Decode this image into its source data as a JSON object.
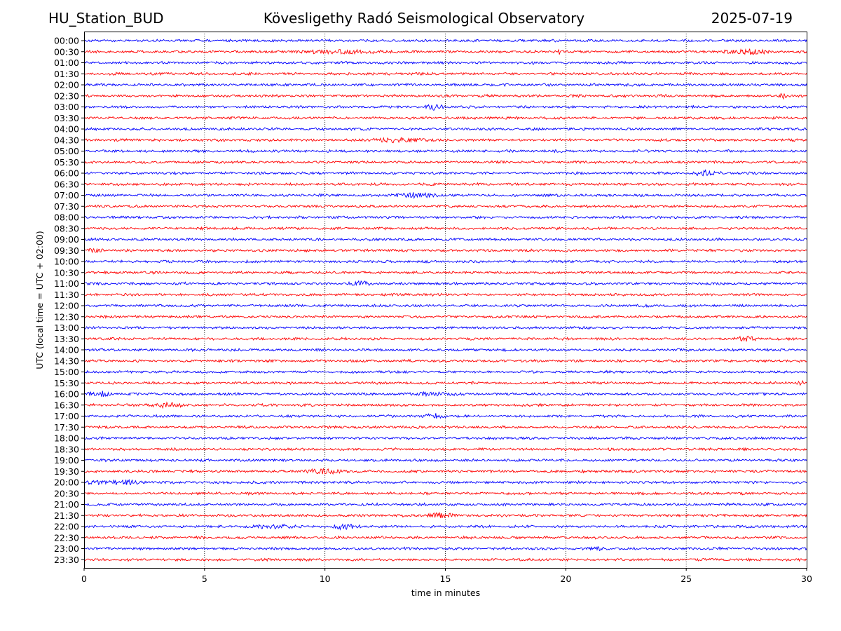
{
  "header": {
    "station": "HU_Station_BUD",
    "title": "Kövesligethy Radó Seismological Observatory",
    "date": "2025-07-19"
  },
  "chart_data": {
    "type": "line",
    "chart_kind": "helicorder",
    "xlabel": "time in minutes",
    "ylabel": "UTC (local time = UTC + 02:00)",
    "xlim": [
      0,
      30
    ],
    "x_ticks": [
      0,
      5,
      10,
      15,
      20,
      25,
      30
    ],
    "x_tick_labels": [
      "0",
      "5",
      "10",
      "15",
      "20",
      "25",
      "30"
    ],
    "grid": "vertical dotted at each x tick",
    "trace_colors": [
      "#0000ff",
      "#ff0000"
    ],
    "row_labels": [
      "00:00",
      "00:30",
      "01:00",
      "01:30",
      "02:00",
      "02:30",
      "03:00",
      "03:30",
      "04:00",
      "04:30",
      "05:00",
      "05:30",
      "06:00",
      "06:30",
      "07:00",
      "07:30",
      "08:00",
      "08:30",
      "09:00",
      "09:30",
      "10:00",
      "10:30",
      "11:00",
      "11:30",
      "12:00",
      "12:30",
      "13:00",
      "13:30",
      "14:00",
      "14:30",
      "15:00",
      "15:30",
      "16:00",
      "16:30",
      "17:00",
      "17:30",
      "18:00",
      "18:30",
      "19:00",
      "19:30",
      "20:00",
      "20:30",
      "21:00",
      "21:30",
      "22:00",
      "22:30",
      "23:00",
      "23:30"
    ],
    "bursts": [
      {
        "row": "00:30",
        "start": 8.5,
        "end": 13,
        "amp": 2.0
      },
      {
        "row": "00:30",
        "start": 19.5,
        "end": 20,
        "amp": 3.0
      },
      {
        "row": "00:30",
        "start": 26.5,
        "end": 28.5,
        "amp": 3.0
      },
      {
        "row": "02:30",
        "start": 28.8,
        "end": 29.2,
        "amp": 3.0
      },
      {
        "row": "03:00",
        "start": 14,
        "end": 15,
        "amp": 3.0
      },
      {
        "row": "04:30",
        "start": 11.5,
        "end": 14.5,
        "amp": 2.5
      },
      {
        "row": "06:00",
        "start": 25.2,
        "end": 26.5,
        "amp": 3.0
      },
      {
        "row": "07:00",
        "start": 12.5,
        "end": 15,
        "amp": 2.5
      },
      {
        "row": "09:30",
        "start": 0,
        "end": 1,
        "amp": 2.5
      },
      {
        "row": "11:00",
        "start": 11,
        "end": 12,
        "amp": 3.0
      },
      {
        "row": "13:30",
        "start": 27,
        "end": 28,
        "amp": 3.0
      },
      {
        "row": "15:30",
        "start": 29.6,
        "end": 30,
        "amp": 3.0
      },
      {
        "row": "16:00",
        "start": 0,
        "end": 1.2,
        "amp": 3.5
      },
      {
        "row": "16:00",
        "start": 13.5,
        "end": 15.5,
        "amp": 2.5
      },
      {
        "row": "16:30",
        "start": 2.5,
        "end": 4.2,
        "amp": 3.0
      },
      {
        "row": "17:00",
        "start": 14,
        "end": 15,
        "amp": 3.0
      },
      {
        "row": "19:30",
        "start": 9,
        "end": 11,
        "amp": 2.5
      },
      {
        "row": "20:00",
        "start": 0,
        "end": 2.5,
        "amp": 3.0
      },
      {
        "row": "21:30",
        "start": 14,
        "end": 15.5,
        "amp": 3.0
      },
      {
        "row": "22:00",
        "start": 7,
        "end": 9,
        "amp": 2.5
      },
      {
        "row": "22:00",
        "start": 10,
        "end": 11.5,
        "amp": 3.0
      },
      {
        "row": "23:00",
        "start": 21,
        "end": 21.8,
        "amp": 2.5
      }
    ]
  }
}
